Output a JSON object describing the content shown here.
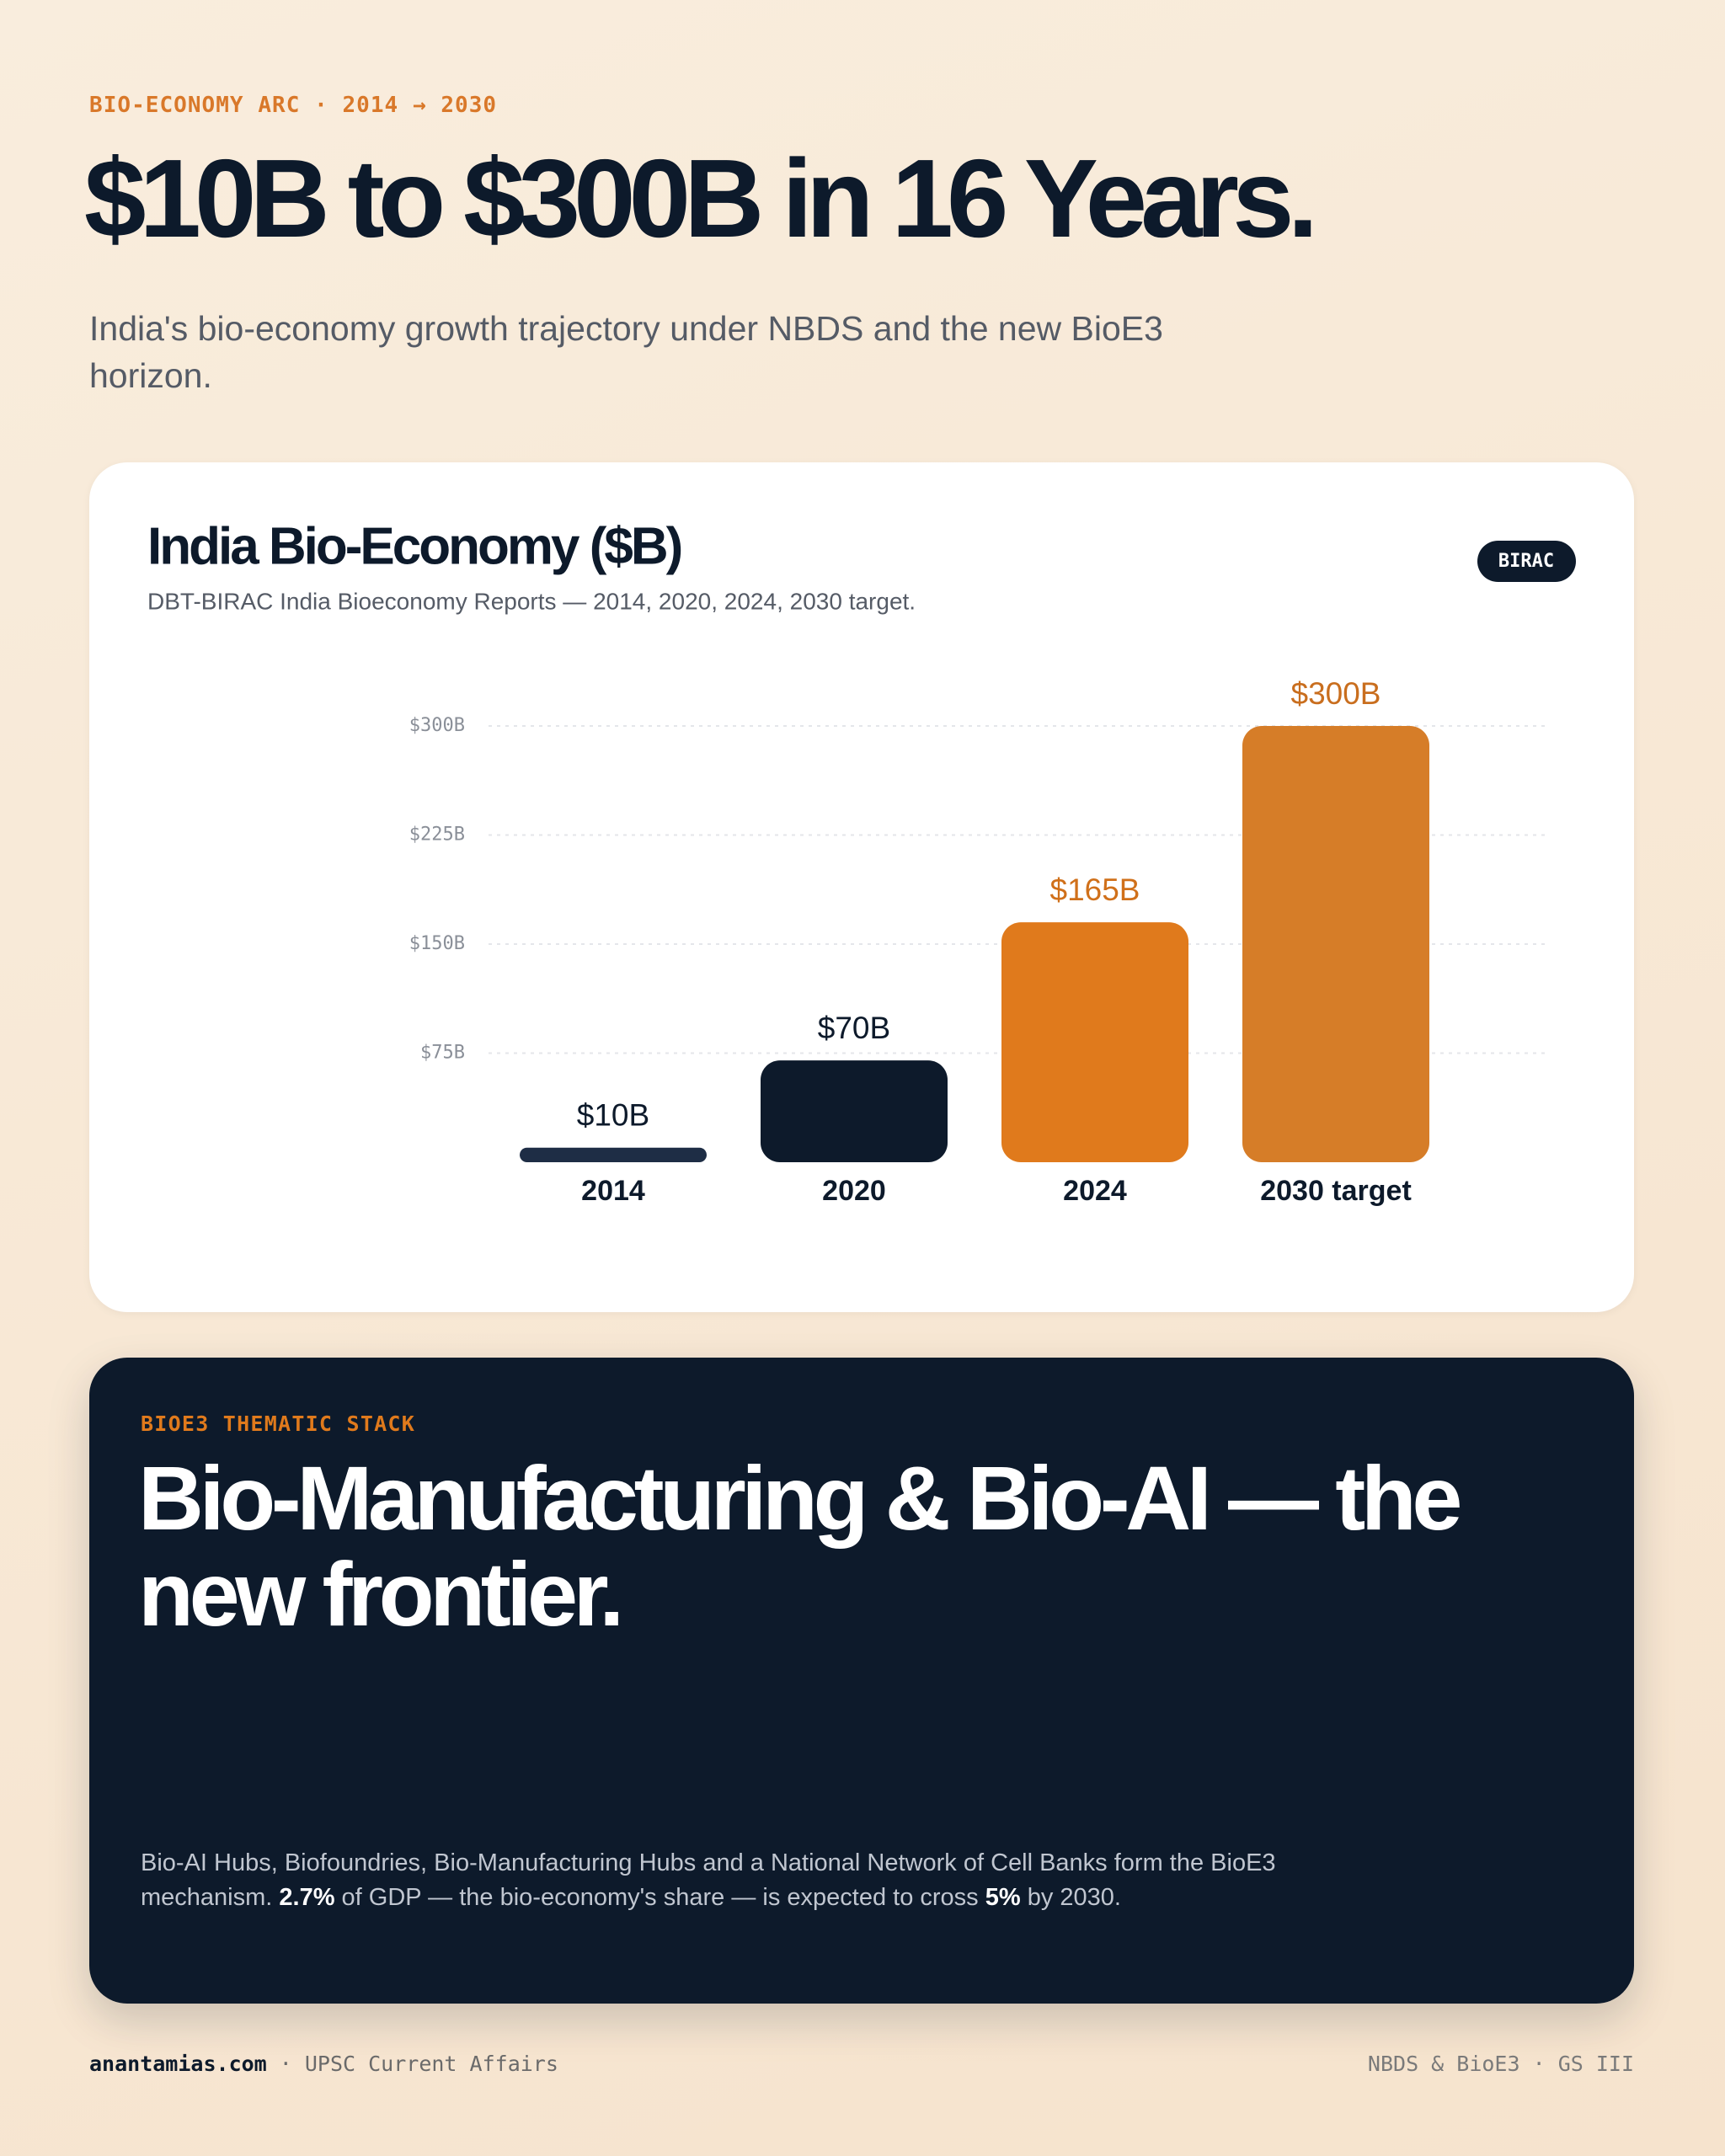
{
  "eyebrow": "BIO-ECONOMY ARC · 2014 → 2030",
  "title": "$10B to $300B in 16 Years.",
  "subtitle": "India's bio-economy growth trajectory under NBDS and the new BioE3 horizon.",
  "chart_data": {
    "type": "bar",
    "title": "India Bio-Economy ($B)",
    "subtitle": "DBT-BIRAC India Bioeconomy Reports — 2014, 2020, 2024, 2030 target.",
    "badge": "BIRAC",
    "categories": [
      "2014",
      "2020",
      "2024",
      "2030 target"
    ],
    "values": [
      10,
      70,
      165,
      300
    ],
    "value_labels": [
      "$10B",
      "$70B",
      "$165B",
      "$300B"
    ],
    "colors": [
      "#1e2d45",
      "#0d1a2b",
      "#e07a1c",
      "#d67d28"
    ],
    "label_colors": [
      "#0d1a2b",
      "#0d1a2b",
      "#d0701a",
      "#c96e1e"
    ],
    "ylim": [
      0,
      300
    ],
    "yticks": [
      {
        "value": 75,
        "label": "$75B"
      },
      {
        "value": 150,
        "label": "$150B"
      },
      {
        "value": 225,
        "label": "$225B"
      },
      {
        "value": 300,
        "label": "$300B"
      }
    ],
    "grid": true
  },
  "panel": {
    "eyebrow": "BIOE3 THEMATIC STACK",
    "heading": "Bio-Manufacturing & Bio-AI — the new frontier.",
    "body": [
      "Bio-AI Hubs, Biofoundries, Bio-Manufacturing Hubs and a National Network of Cell Banks form the BioE3 mechanism. ",
      "2.7%",
      " of GDP — the bio-economy's share — is expected to cross ",
      "5%",
      " by 2030."
    ]
  },
  "footer": {
    "site": "anantamias.com",
    "section": " · UPSC Current Affairs",
    "right": "NBDS & BioE3 · GS III"
  }
}
